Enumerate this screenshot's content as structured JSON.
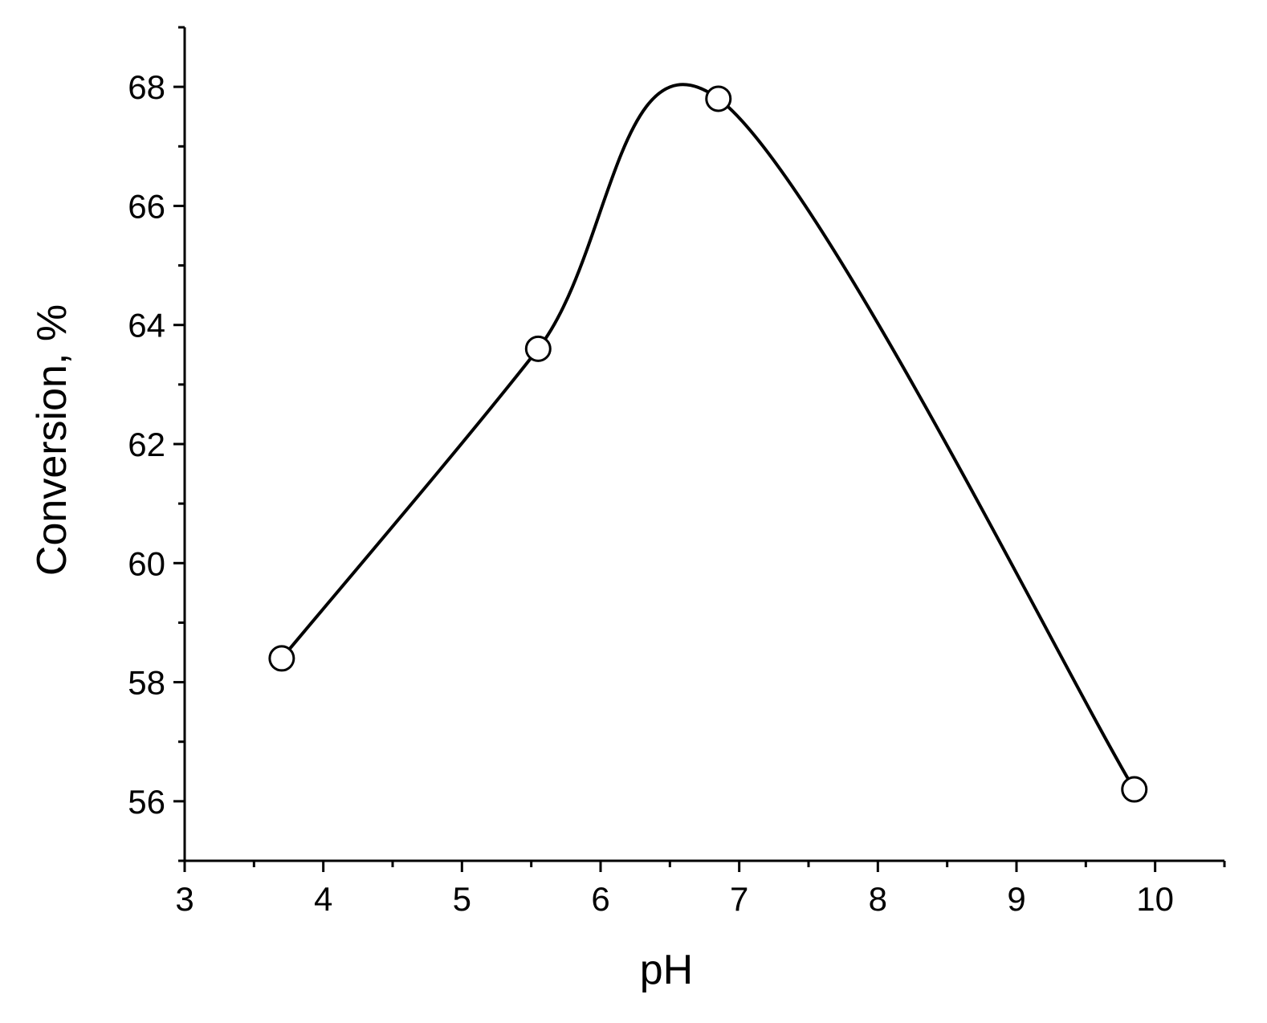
{
  "chart_data": {
    "type": "line",
    "x_label": "pH",
    "y_label": "Conversion, %",
    "x": [
      3.7,
      5.55,
      6.85,
      9.85
    ],
    "series": [
      {
        "color": "#000000",
        "values": [
          58.4,
          63.6,
          67.8,
          56.2
        ]
      }
    ],
    "smooth": true,
    "markers": "open-circle",
    "xlim": [
      3,
      10.5
    ],
    "xticks": [
      3,
      4,
      5,
      6,
      7,
      8,
      9,
      10
    ],
    "xminorticks": [
      3.5,
      4.5,
      5.5,
      6.5,
      7.5,
      8.5,
      9.5,
      10.5
    ],
    "ylim": [
      55,
      69
    ],
    "yticks": [
      56,
      58,
      60,
      62,
      64,
      66,
      68
    ],
    "yminorticks": [
      55,
      57,
      59,
      61,
      63,
      65,
      67,
      69
    ],
    "grid": false
  }
}
